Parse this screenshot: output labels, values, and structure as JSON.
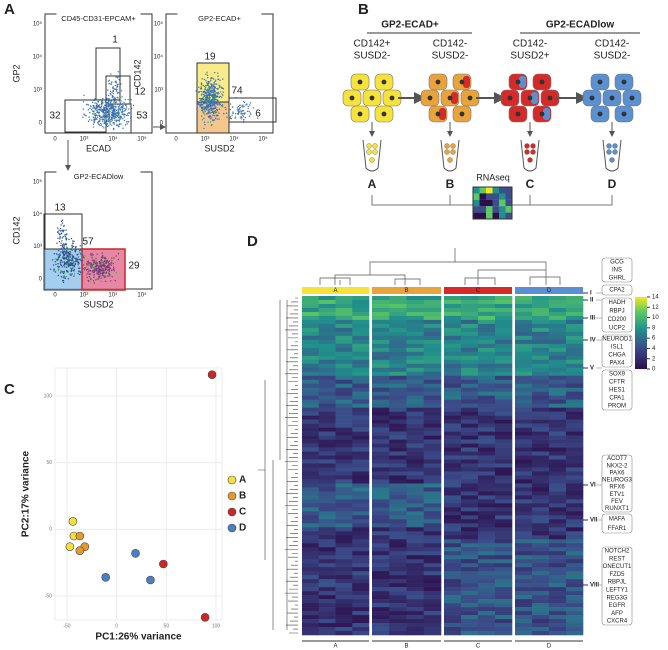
{
  "panel_labels": [
    "A",
    "B",
    "C",
    "D"
  ],
  "panel_a": {
    "tick_labels_y": [
      "10⁵",
      "10⁴",
      "10³",
      "0"
    ],
    "tick_labels_x": [
      "0",
      "10³",
      "10⁴",
      "10⁵"
    ],
    "plots": [
      {
        "title": "CD45-CD31-EPCAM+",
        "y_label": "GP2",
        "x_label": "ECAD",
        "gates": [
          1,
          12,
          32,
          53
        ]
      },
      {
        "title": "GP2-ECAD+",
        "y_label": "CD142",
        "x_label": "SUSD2",
        "gates": [
          19,
          74,
          6
        ]
      },
      {
        "title": "GP2-ECADlow",
        "y_label": "CD142",
        "x_label": "SUSD2",
        "gates": [
          13,
          57,
          29
        ]
      }
    ]
  },
  "panel_b": {
    "groups": [
      "GP2-ECAD+",
      "GP2-ECADlow"
    ],
    "populations": [
      [
        "CD142+",
        "SUSD2-"
      ],
      [
        "CD142-",
        "SUSD2-"
      ],
      [
        "CD142-",
        "SUSD2+"
      ],
      [
        "CD142-",
        "SUSD2-"
      ]
    ],
    "samples": [
      "A",
      "B",
      "C",
      "D"
    ],
    "method": "RNAseq"
  },
  "panel_c": {
    "type": "scatter",
    "x_label": "PC1:26% variance",
    "y_label": "PC2:17% variance",
    "xlim": [
      -62,
      106
    ],
    "ylim": [
      -68,
      121
    ],
    "xticks": [
      -50,
      0,
      50,
      100
    ],
    "yticks": [
      -50,
      0,
      50,
      100
    ],
    "grid": true,
    "series": [
      {
        "name": "A",
        "color": "#f3e13a",
        "x": [
          -44,
          -43,
          -47
        ],
        "y": [
          6,
          -5,
          -13
        ]
      },
      {
        "name": "B",
        "color": "#e69a2e",
        "x": [
          -37,
          -32,
          -37
        ],
        "y": [
          -5,
          -13,
          -16
        ]
      },
      {
        "name": "C",
        "color": "#c8282a",
        "x": [
          96,
          47,
          89
        ],
        "y": [
          116,
          -26,
          -66
        ]
      },
      {
        "name": "D",
        "color": "#4a7fc1",
        "x": [
          19,
          34,
          -11
        ],
        "y": [
          -18,
          -38,
          -36
        ]
      }
    ]
  },
  "panel_d": {
    "columns": [
      "A",
      "B",
      "C",
      "D"
    ],
    "colorbar_ticks": [
      14,
      12,
      10,
      8,
      6,
      4,
      2,
      0
    ],
    "clusters": [
      {
        "id": "I",
        "genes": [
          "GCG",
          "INS",
          "GHRL"
        ]
      },
      {
        "id": "II",
        "genes": [
          "CPA2"
        ]
      },
      {
        "id": "III",
        "genes": [
          "HADH",
          "RBPJ",
          "CD200",
          "UCP2"
        ]
      },
      {
        "id": "IV",
        "genes": [
          "NEUROD1",
          "ISL1",
          "CHGA",
          "PAX4"
        ]
      },
      {
        "id": "V",
        "genes": [
          "SOX9",
          "CFTR",
          "HES1",
          "CPA1",
          "PROM"
        ]
      },
      {
        "id": "VI",
        "genes": [
          "ACOT7",
          "NKX2-2",
          "PAX6",
          "NEUROG3",
          "RFX6",
          "ETV1",
          "FEV",
          "RUNXT1"
        ]
      },
      {
        "id": "VII",
        "genes": [
          "MAFA",
          "FFAR1"
        ]
      },
      {
        "id": "VIII",
        "genes": [
          "NOTCH2",
          "REST",
          "ONECUT1",
          "FZD5",
          "RBPJL",
          "LEFTY1",
          "REG3G",
          "EGFR",
          "AFP",
          "CXCR4"
        ]
      }
    ]
  }
}
